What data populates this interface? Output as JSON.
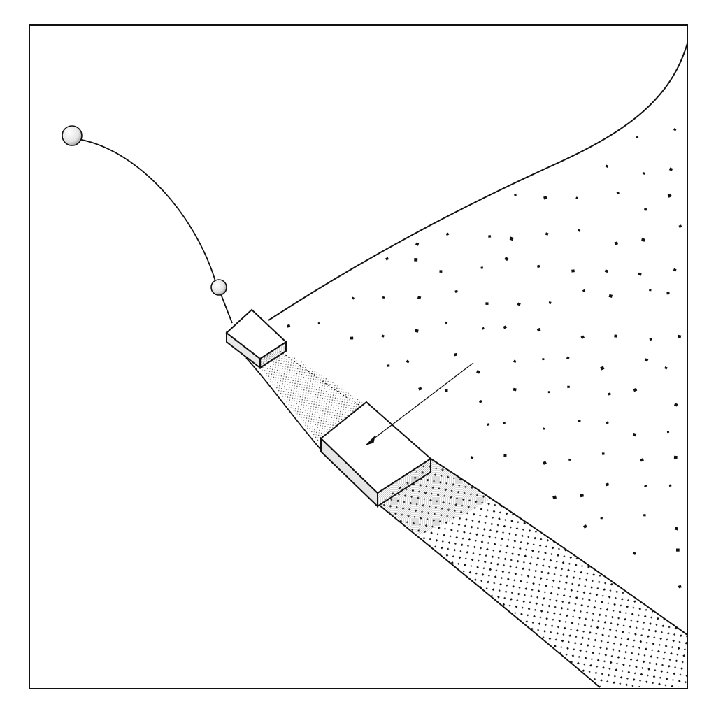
{
  "figure": {
    "ink_color": "#111111",
    "paper_color": "#ffffff",
    "shade_color": "#9a9a9a",
    "components": [
      "frame",
      "hanging-cord",
      "ball-large",
      "ball-small",
      "emitter-block-small",
      "emitter-block-large",
      "beam-upper",
      "beam-lower",
      "dot-field",
      "pointer-line"
    ]
  }
}
